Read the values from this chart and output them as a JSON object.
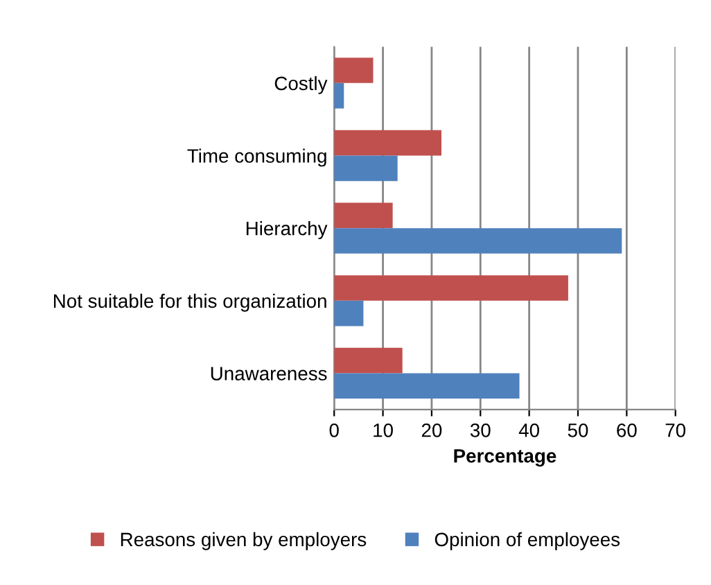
{
  "chart_data": {
    "type": "bar",
    "orientation": "horizontal",
    "xlabel": "Percentage",
    "categories": [
      "Costly",
      "Time consuming",
      "Hierarchy",
      "Not suitable for this organization",
      "Unawareness"
    ],
    "series": [
      {
        "name": "Reasons given by employers",
        "color": "#c0504d",
        "values": [
          8,
          22,
          12,
          48,
          14
        ]
      },
      {
        "name": "Opinion of employees",
        "color": "#4f81bd",
        "values": [
          2,
          13,
          59,
          6,
          38
        ]
      }
    ],
    "xlim": [
      0,
      70
    ],
    "xticks": [
      0,
      10,
      20,
      30,
      40,
      50,
      60,
      70
    ],
    "grid": "x",
    "legend": "bottom"
  }
}
